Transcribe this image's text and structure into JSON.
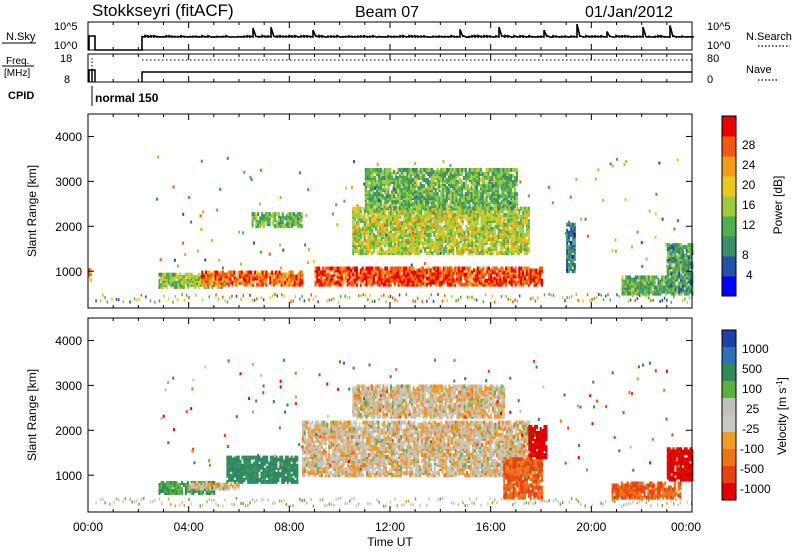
{
  "header": {
    "title": "Stokkseyri (fitACF)",
    "beam": "Beam 07",
    "date": "01/Jan/2012"
  },
  "panels": {
    "nsky": {
      "label": "N.Sky",
      "left_ticks": [
        "10^5",
        "10^0"
      ],
      "right_ticks": [
        "10^5",
        "10^0"
      ],
      "right_label": "N.Search"
    },
    "freq": {
      "label_line1": "Freq.",
      "label_line2": "[MHz]",
      "left_ticks": [
        "18",
        "8"
      ],
      "right_ticks": [
        "80",
        "0"
      ],
      "right_label": "Nave"
    },
    "cpid": {
      "label": "CPID",
      "value": "normal 150"
    }
  },
  "colorbars": {
    "power": {
      "title": "Power [dB]",
      "labels": [
        "28",
        "24",
        "20",
        "16",
        "12",
        "8",
        "4"
      ],
      "colors": [
        "#0000ff",
        "#2450a8",
        "#3a8c6a",
        "#4fae4f",
        "#9ccc3c",
        "#e8c81e",
        "#f39a1a",
        "#ef5a10",
        "#e60000"
      ]
    },
    "velocity": {
      "title_main": "Velocity [m s",
      "title_sup": "-1",
      "title_end": "]",
      "labels": [
        "1000",
        "500",
        "100",
        "25",
        "-25",
        "-100",
        "-500",
        "-1000"
      ],
      "colors": [
        "#1d3faa",
        "#2f6fb8",
        "#2f8a5a",
        "#5cb042",
        "#c0c0bc",
        "#c8c8c4",
        "#f09a2a",
        "#ee7218",
        "#e84010",
        "#e00000"
      ]
    }
  },
  "xaxis": {
    "label": "Time UT",
    "ticks": [
      "00:00",
      "04:00",
      "08:00",
      "12:00",
      "16:00",
      "20:00",
      "00:00"
    ]
  },
  "yaxis": {
    "label": "Slant Range [km]",
    "ticks": [
      "1000",
      "2000",
      "3000",
      "4000"
    ]
  },
  "chart_data": [
    {
      "type": "heatmap",
      "name": "power",
      "x_range_hours": [
        0,
        24
      ],
      "y_range_km": [
        180,
        4500
      ],
      "value_unit": "dB",
      "color_range": [
        0,
        30
      ],
      "echo_regions": [
        {
          "t0": 0.0,
          "t1": 0.15,
          "r0": 800,
          "r1": 1050,
          "value": 22
        },
        {
          "t0": 2.8,
          "t1": 5.5,
          "r0": 650,
          "r1": 950,
          "value": 14
        },
        {
          "t0": 4.5,
          "t1": 8.5,
          "r0": 700,
          "r1": 1000,
          "value": 24
        },
        {
          "t0": 6.5,
          "t1": 8.5,
          "r0": 2000,
          "r1": 2300,
          "value": 12
        },
        {
          "t0": 9.0,
          "t1": 18.0,
          "r0": 700,
          "r1": 1100,
          "value": 26
        },
        {
          "t0": 10.5,
          "t1": 17.5,
          "r0": 1400,
          "r1": 2400,
          "value": 16
        },
        {
          "t0": 11.0,
          "t1": 17.0,
          "r0": 2400,
          "r1": 3300,
          "value": 12
        },
        {
          "t0": 19.0,
          "t1": 19.3,
          "r0": 1000,
          "r1": 2100,
          "value": 8
        },
        {
          "t0": 21.2,
          "t1": 23.2,
          "r0": 500,
          "r1": 900,
          "value": 12
        },
        {
          "t0": 23.0,
          "t1": 24.0,
          "r0": 500,
          "r1": 1600,
          "value": 10
        }
      ]
    },
    {
      "type": "heatmap",
      "name": "velocity",
      "x_range_hours": [
        0,
        24
      ],
      "y_range_km": [
        180,
        4500
      ],
      "value_unit": "m s-1",
      "echo_regions": [
        {
          "t0": 2.8,
          "t1": 5.0,
          "r0": 600,
          "r1": 850,
          "value": 200
        },
        {
          "t0": 5.5,
          "t1": 8.3,
          "r0": 850,
          "r1": 1400,
          "value": 400
        },
        {
          "t0": 4.0,
          "t1": 6.0,
          "r0": 700,
          "r1": 800,
          "value": 0
        },
        {
          "t0": 8.5,
          "t1": 17.5,
          "r0": 1000,
          "r1": 2200,
          "value": 0
        },
        {
          "t0": 10.5,
          "t1": 16.5,
          "r0": 2300,
          "r1": 3000,
          "value": 0
        },
        {
          "t0": 16.5,
          "t1": 18.0,
          "r0": 500,
          "r1": 1400,
          "value": -300
        },
        {
          "t0": 17.5,
          "t1": 18.2,
          "r0": 1400,
          "r1": 2100,
          "value": -800
        },
        {
          "t0": 20.8,
          "t1": 23.5,
          "r0": 500,
          "r1": 850,
          "value": -300
        },
        {
          "t0": 23.0,
          "t1": 24.0,
          "r0": 900,
          "r1": 1600,
          "value": -900
        }
      ]
    }
  ]
}
